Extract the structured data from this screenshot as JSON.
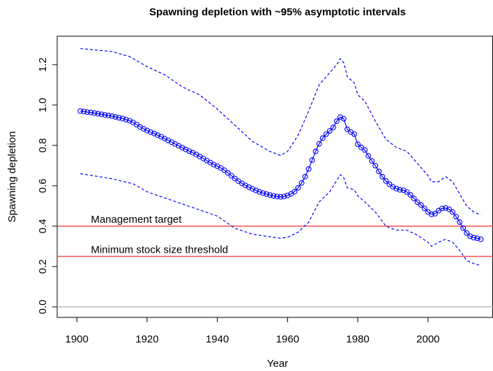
{
  "chart_data": {
    "type": "line",
    "title": "Spawning depletion with ~95% asymptotic intervals",
    "x_label": "Year",
    "y_label": "Spawning depletion",
    "xlim": [
      1894.4,
      2018.5
    ],
    "ylim": [
      -0.052,
      1.341
    ],
    "xticks": [
      1900,
      1920,
      1940,
      1960,
      1980,
      2000
    ],
    "yticks": [
      {
        "value": 0,
        "label": "0.0"
      },
      0.2,
      0.4,
      0.6,
      0.8,
      {
        "value": 1,
        "label": "1.0"
      },
      1.2
    ],
    "series": [
      {
        "color": "#0000ff",
        "style": "line-points",
        "x": [
          1901,
          1902,
          1903,
          1904,
          1905,
          1906,
          1907,
          1908,
          1909,
          1910,
          1911,
          1912,
          1913,
          1914,
          1915,
          1916,
          1917,
          1918,
          1919,
          1920,
          1921,
          1922,
          1923,
          1924,
          1925,
          1926,
          1927,
          1928,
          1929,
          1930,
          1931,
          1932,
          1933,
          1934,
          1935,
          1936,
          1937,
          1938,
          1939,
          1940,
          1941,
          1942,
          1943,
          1944,
          1945,
          1946,
          1947,
          1948,
          1949,
          1950,
          1951,
          1952,
          1953,
          1954,
          1955,
          1956,
          1957,
          1958,
          1959,
          1960,
          1961,
          1962,
          1963,
          1964,
          1965,
          1966,
          1967,
          1968,
          1969,
          1970,
          1971,
          1972,
          1973,
          1974,
          1975,
          1976,
          1977,
          1978,
          1979,
          1980,
          1981,
          1982,
          1983,
          1984,
          1985,
          1986,
          1987,
          1988,
          1989,
          1990,
          1991,
          1992,
          1993,
          1994,
          1995,
          1996,
          1997,
          1998,
          1999,
          2000,
          2001,
          2002,
          2003,
          2004,
          2005,
          2006,
          2007,
          2008,
          2009,
          2010,
          2011,
          2012,
          2013,
          2014,
          2015
        ],
        "values": [
          0.97,
          0.968,
          0.965,
          0.963,
          0.96,
          0.957,
          0.954,
          0.951,
          0.948,
          0.945,
          0.941,
          0.937,
          0.933,
          0.928,
          0.922,
          0.914,
          0.903,
          0.892,
          0.882,
          0.874,
          0.866,
          0.859,
          0.851,
          0.843,
          0.834,
          0.825,
          0.816,
          0.807,
          0.798,
          0.789,
          0.78,
          0.772,
          0.764,
          0.755,
          0.745,
          0.735,
          0.725,
          0.715,
          0.705,
          0.697,
          0.688,
          0.677,
          0.664,
          0.65,
          0.636,
          0.623,
          0.612,
          0.602,
          0.593,
          0.585,
          0.577,
          0.57,
          0.564,
          0.559,
          0.554,
          0.55,
          0.547,
          0.545,
          0.547,
          0.552,
          0.56,
          0.571,
          0.59,
          0.614,
          0.645,
          0.683,
          0.727,
          0.77,
          0.808,
          0.836,
          0.856,
          0.872,
          0.889,
          0.92,
          0.94,
          0.932,
          0.88,
          0.866,
          0.856,
          0.806,
          0.79,
          0.777,
          0.748,
          0.723,
          0.7,
          0.671,
          0.645,
          0.624,
          0.608,
          0.595,
          0.586,
          0.58,
          0.578,
          0.569,
          0.555,
          0.537,
          0.519,
          0.505,
          0.488,
          0.47,
          0.459,
          0.462,
          0.477,
          0.488,
          0.49,
          0.484,
          0.47,
          0.447,
          0.42,
          0.39,
          0.366,
          0.35,
          0.343,
          0.34,
          0.335
        ]
      },
      {
        "color": "#0000ff",
        "style": "dashed",
        "x": [
          1901,
          1910,
          1915,
          1920,
          1925,
          1930,
          1935,
          1940,
          1945,
          1950,
          1955,
          1958,
          1960,
          1963,
          1966,
          1969,
          1972,
          1974,
          1975,
          1976,
          1977,
          1979,
          1980,
          1982,
          1985,
          1988,
          1991,
          1994,
          1997,
          2000,
          2001,
          2003,
          2005,
          2007,
          2009,
          2011,
          2013,
          2015
        ],
        "values": [
          1.28,
          1.265,
          1.24,
          1.19,
          1.15,
          1.09,
          1.05,
          0.98,
          0.9,
          0.82,
          0.77,
          0.75,
          0.77,
          0.85,
          0.97,
          1.1,
          1.16,
          1.2,
          1.23,
          1.21,
          1.14,
          1.11,
          1.05,
          1.02,
          0.92,
          0.83,
          0.79,
          0.77,
          0.71,
          0.65,
          0.62,
          0.62,
          0.645,
          0.62,
          0.56,
          0.5,
          0.47,
          0.455
        ]
      },
      {
        "color": "#0000ff",
        "style": "dashed",
        "x": [
          1901,
          1910,
          1916,
          1920,
          1930,
          1940,
          1945,
          1950,
          1958,
          1960,
          1963,
          1966,
          1969,
          1972,
          1975,
          1976,
          1977,
          1979,
          1980,
          1982,
          1985,
          1988,
          1991,
          1994,
          1997,
          2000,
          2001,
          2003,
          2005,
          2007,
          2009,
          2011,
          2013,
          2015
        ],
        "values": [
          0.66,
          0.635,
          0.61,
          0.57,
          0.51,
          0.45,
          0.39,
          0.36,
          0.34,
          0.345,
          0.37,
          0.42,
          0.52,
          0.57,
          0.655,
          0.64,
          0.59,
          0.58,
          0.55,
          0.52,
          0.47,
          0.4,
          0.38,
          0.38,
          0.355,
          0.32,
          0.3,
          0.32,
          0.335,
          0.32,
          0.28,
          0.23,
          0.215,
          0.205
        ]
      }
    ],
    "hlines": [
      {
        "value": 0,
        "color": "#bbbbbb"
      },
      {
        "value": 0.4,
        "color": "#f05050",
        "label": "Management target"
      },
      {
        "value": 0.25,
        "color": "#f05050",
        "label": "Minimum stock size threshold"
      }
    ]
  }
}
